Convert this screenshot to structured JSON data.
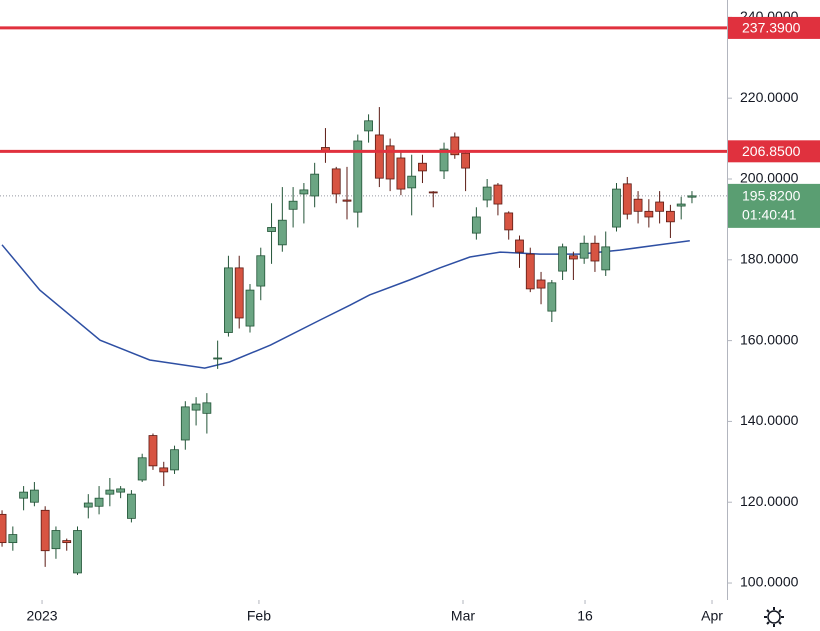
{
  "chart_data": {
    "type": "candlestick",
    "x": [
      0,
      1,
      2,
      3,
      4,
      5,
      6,
      7,
      8,
      9,
      10,
      11,
      12,
      13,
      14,
      15,
      16,
      17,
      18,
      19,
      20,
      21,
      22,
      23,
      24,
      25,
      26,
      27,
      28,
      29,
      30,
      31,
      32,
      33,
      34,
      35,
      36,
      37,
      38,
      39,
      40,
      41,
      42,
      43,
      44,
      45,
      46,
      47,
      48,
      49,
      50,
      51,
      52,
      53,
      54,
      55,
      56,
      57,
      58,
      59,
      60,
      61,
      62,
      63,
      64
    ],
    "open": [
      117,
      110,
      121,
      120,
      118,
      108.5,
      110.5,
      102.5,
      118.8,
      119,
      122,
      122.5,
      116,
      125.5,
      136.5,
      128.5,
      128,
      135.4,
      142.8,
      142,
      155.5,
      162,
      178,
      163.6,
      173.5,
      187,
      183.7,
      192.5,
      196.3,
      195.8,
      207.8,
      202.5,
      194.8,
      191.8,
      211.9,
      210.9,
      208.2,
      205.2,
      197.8,
      203.9,
      196.8,
      202,
      210.4,
      206.4,
      186.6,
      194.8,
      198.5,
      191.6,
      184.9,
      181.4,
      175,
      167.3,
      177.2,
      181,
      180.4,
      184.1,
      177.5,
      188.1,
      198.8,
      195,
      192,
      194.3,
      192,
      193.3,
      195.5
    ],
    "high": [
      118,
      114,
      124,
      125,
      119,
      114,
      111,
      114,
      122,
      124,
      126,
      124,
      123,
      132,
      137,
      130,
      134,
      145,
      146,
      147,
      160,
      181,
      181,
      174,
      183,
      194,
      198,
      198,
      199,
      204,
      212.6,
      203,
      203,
      211,
      216,
      217.8,
      210,
      207,
      206,
      206,
      197,
      209,
      211.5,
      207,
      193,
      200,
      199,
      192,
      186,
      183,
      177,
      175,
      184,
      182,
      186,
      186,
      187,
      199,
      200.5,
      197,
      195,
      197,
      193.6,
      195.6,
      197
    ],
    "low": [
      109,
      108,
      118,
      119,
      104,
      106,
      108,
      102,
      116,
      117,
      119,
      121,
      115,
      125,
      128,
      124,
      127,
      133,
      139,
      137,
      153,
      161,
      163,
      162,
      170,
      179,
      182,
      188,
      189,
      193,
      204,
      194,
      190,
      188,
      209,
      198,
      197,
      196,
      191,
      199,
      193,
      200,
      205,
      197,
      185,
      193,
      191,
      185,
      178,
      172,
      169,
      164.6,
      175,
      175,
      179,
      177,
      176,
      187,
      190,
      189,
      188,
      189,
      185.4,
      190,
      194
    ],
    "close": [
      110,
      112,
      122.5,
      123,
      108,
      113,
      110,
      113,
      119.8,
      121,
      123,
      123.3,
      122,
      131,
      129,
      127.5,
      133,
      143.6,
      144.3,
      144.6,
      155.7,
      178,
      165.6,
      172.5,
      181,
      188,
      189.8,
      194.5,
      197.3,
      201.2,
      206.7,
      196.3,
      194.5,
      209.4,
      214.4,
      200.2,
      200,
      197.5,
      200.7,
      202,
      196.6,
      207.4,
      206,
      202.7,
      190.6,
      198,
      193.8,
      187.4,
      181.9,
      172.8,
      173,
      174.3,
      183.2,
      180.2,
      184.1,
      179.7,
      183.2,
      197.5,
      191.3,
      192,
      190.6,
      192,
      189.4,
      193.8,
      195.82
    ],
    "up_color": "#6ba583",
    "up_border": "#225437",
    "down_color": "#d75442",
    "down_border": "#5b1a13",
    "moving_average": {
      "color": "#2e4fa3",
      "x": [
        0,
        3.5,
        9.1,
        13.7,
        18.8,
        21.1,
        24.9,
        29.5,
        32.3,
        34.1,
        37.8,
        40.6,
        43.4,
        46.2,
        49.9,
        53.6,
        57.3,
        61.0,
        63.8
      ],
      "values": [
        183.7,
        172.5,
        160.1,
        155.2,
        153.2,
        154.7,
        158.9,
        165.1,
        168.8,
        171.3,
        175,
        178,
        180.7,
        181.9,
        181.4,
        181.4,
        182.4,
        183.7,
        184.7
      ]
    },
    "hlines": [
      {
        "value": 237.39,
        "label": "237.3900",
        "color": "#e0313e"
      },
      {
        "value": 206.85,
        "label": "206.8500",
        "color": "#e0313e"
      }
    ],
    "last_price": {
      "value": 195.82,
      "label": "195.8200",
      "countdown": "01:40:41",
      "color": "#5a9e72"
    },
    "xlim": [
      -0.19,
      67.25
    ],
    "ylim": [
      95.8,
      244.3
    ],
    "yticks": [
      {
        "value": 100,
        "label": "100.0000"
      },
      {
        "value": 120,
        "label": "120.0000"
      },
      {
        "value": 140,
        "label": "140.0000"
      },
      {
        "value": 160,
        "label": "160.0000"
      },
      {
        "value": 180,
        "label": "180.0000"
      },
      {
        "value": 200,
        "label": "200.0000"
      },
      {
        "value": 220,
        "label": "220.0000"
      },
      {
        "value": 240,
        "label": "240.0000"
      }
    ],
    "xticks": [
      {
        "value": 3.71,
        "label": "2023"
      },
      {
        "value": 23.83,
        "label": "Feb"
      },
      {
        "value": 42.76,
        "label": "Mar"
      },
      {
        "value": 54.08,
        "label": "16"
      },
      {
        "value": 65.86,
        "label": "Apr"
      }
    ]
  }
}
